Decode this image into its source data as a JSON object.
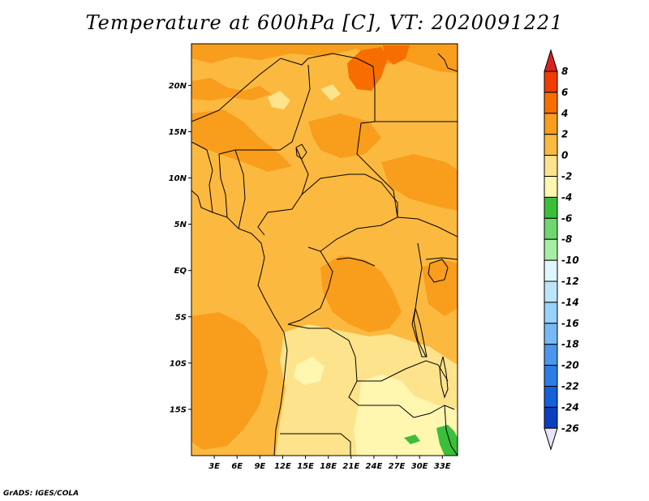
{
  "title": "Temperature at 600hPa [C], VT: 2020091221",
  "credit": "GrADS: IGES/COLA",
  "map": {
    "lon_range": [
      0,
      35
    ],
    "lat_range": [
      -20,
      24.5
    ],
    "lat_ticks": [
      {
        "value": 20,
        "label": "20N"
      },
      {
        "value": 15,
        "label": "15N"
      },
      {
        "value": 10,
        "label": "10N"
      },
      {
        "value": 5,
        "label": "5N"
      },
      {
        "value": 0,
        "label": "EQ"
      },
      {
        "value": -5,
        "label": "5S"
      },
      {
        "value": -10,
        "label": "10S"
      },
      {
        "value": -15,
        "label": "15S"
      }
    ],
    "lon_ticks": [
      {
        "value": 3,
        "label": "3E"
      },
      {
        "value": 6,
        "label": "6E"
      },
      {
        "value": 9,
        "label": "9E"
      },
      {
        "value": 12,
        "label": "12E"
      },
      {
        "value": 15,
        "label": "15E"
      },
      {
        "value": 18,
        "label": "18E"
      },
      {
        "value": 21,
        "label": "21E"
      },
      {
        "value": 24,
        "label": "24E"
      },
      {
        "value": 27,
        "label": "27E"
      },
      {
        "value": 30,
        "label": "30E"
      },
      {
        "value": 33,
        "label": "33E"
      }
    ]
  },
  "colorbar": {
    "levels": [
      "8",
      "6",
      "4",
      "2",
      "0",
      "-2",
      "-4",
      "-6",
      "-8",
      "-10",
      "-12",
      "-14",
      "-16",
      "-18",
      "-20",
      "-22",
      "-24",
      "-26"
    ],
    "colors": [
      "#f03c00",
      "#f66e00",
      "#f99d1c",
      "#fcb940",
      "#fde38c",
      "#fff6b0",
      "#3bbf3b",
      "#6ed76e",
      "#a6eea6",
      "#e1f7ff",
      "#bde5fa",
      "#96d2fa",
      "#78b9f5",
      "#4b97ee",
      "#2c7ce6",
      "#1660d8",
      "#0c3ec0",
      "#061c88"
    ],
    "top_color": "#d7221f",
    "bottom_color": "#e6e6f6"
  },
  "fields": {
    "base": "#fcb940",
    "warm": "#f99d1c",
    "warmest": "#f66e00",
    "cool": "#fde38c",
    "cooler": "#fff6b0",
    "green": "#3bbf3b"
  }
}
